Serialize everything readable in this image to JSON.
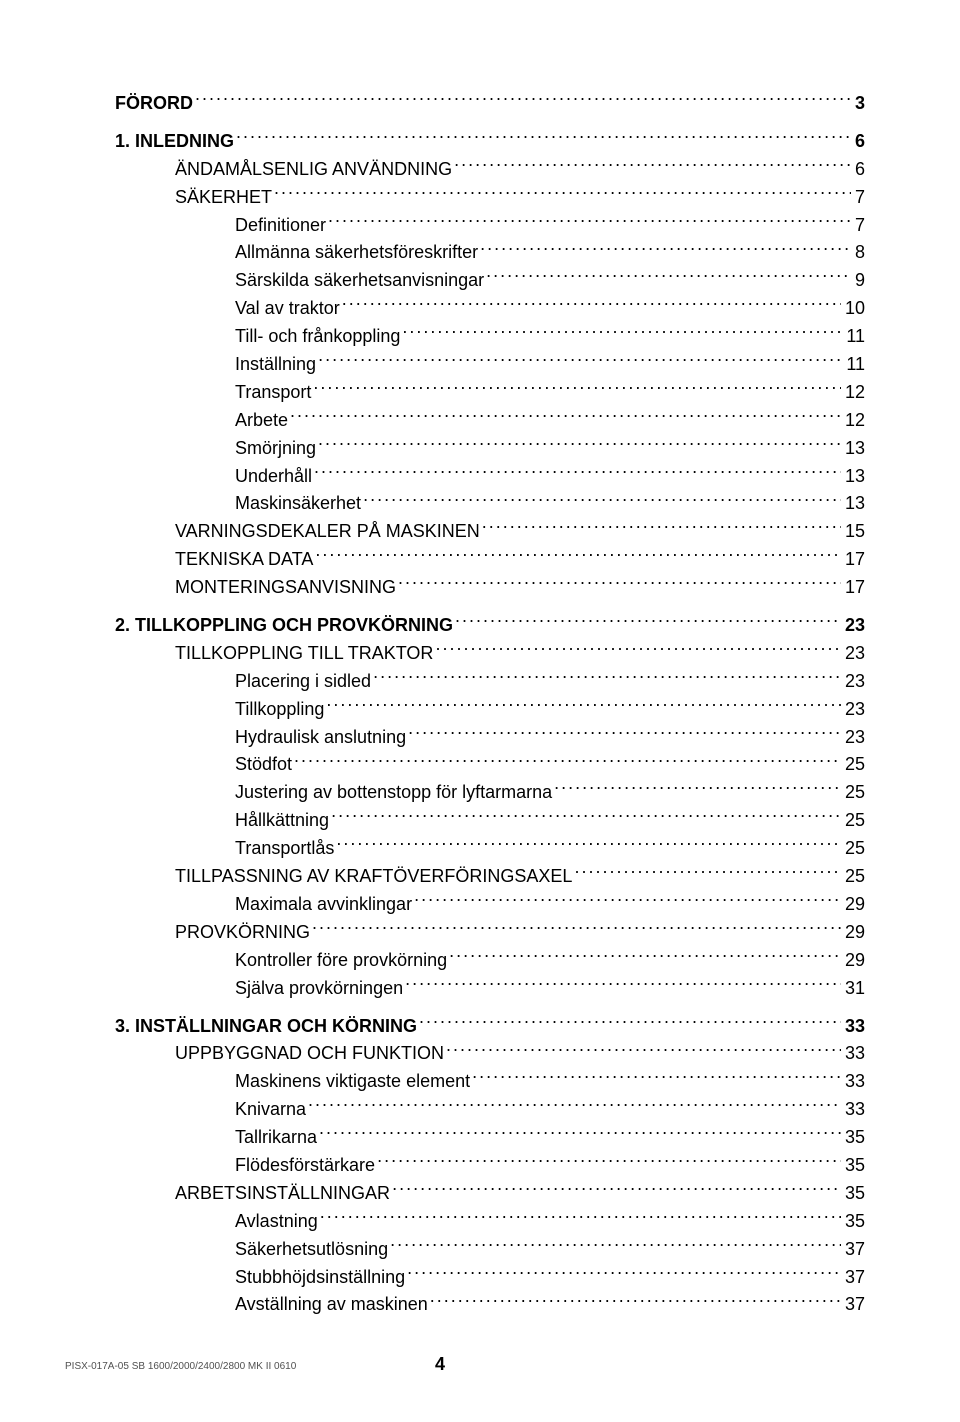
{
  "toc": [
    {
      "label": "FÖRORD",
      "page": "3",
      "level": 0,
      "first": true
    },
    {
      "label": "1. INLEDNING",
      "page": "6",
      "level": 0
    },
    {
      "label": "ÄNDAMÅLSENLIG ANVÄNDNING",
      "page": "6",
      "level": 1
    },
    {
      "label": "SÄKERHET",
      "page": "7",
      "level": 1
    },
    {
      "label": "Definitioner",
      "page": "7",
      "level": 2
    },
    {
      "label": "Allmänna säkerhetsföreskrifter",
      "page": "8",
      "level": 2
    },
    {
      "label": "Särskilda säkerhetsanvisningar",
      "page": "9",
      "level": 2
    },
    {
      "label": "Val av traktor",
      "page": "10",
      "level": 2
    },
    {
      "label": "Till- och frånkoppling",
      "page": "11",
      "level": 2
    },
    {
      "label": "Inställning",
      "page": "11",
      "level": 2
    },
    {
      "label": "Transport",
      "page": "12",
      "level": 2
    },
    {
      "label": "Arbete",
      "page": "12",
      "level": 2
    },
    {
      "label": "Smörjning",
      "page": "13",
      "level": 2
    },
    {
      "label": "Underhåll",
      "page": "13",
      "level": 2
    },
    {
      "label": "Maskinsäkerhet",
      "page": "13",
      "level": 2
    },
    {
      "label": "VARNINGSDEKALER PÅ MASKINEN",
      "page": "15",
      "level": 1
    },
    {
      "label": "TEKNISKA DATA",
      "page": "17",
      "level": 1
    },
    {
      "label": "MONTERINGSANVISNING",
      "page": "17",
      "level": 1
    },
    {
      "label": "2. TILLKOPPLING OCH PROVKÖRNING",
      "page": "23",
      "level": 0
    },
    {
      "label": "TILLKOPPLING TILL TRAKTOR",
      "page": "23",
      "level": 1
    },
    {
      "label": "Placering i sidled",
      "page": "23",
      "level": 2
    },
    {
      "label": "Tillkoppling",
      "page": "23",
      "level": 2
    },
    {
      "label": "Hydraulisk anslutning",
      "page": "23",
      "level": 2
    },
    {
      "label": "Stödfot",
      "page": "25",
      "level": 2
    },
    {
      "label": "Justering av bottenstopp för lyftarmarna",
      "page": "25",
      "level": 2
    },
    {
      "label": "Hållkättning",
      "page": "25",
      "level": 2
    },
    {
      "label": "Transportlås",
      "page": "25",
      "level": 2
    },
    {
      "label": "TILLPASSNING AV KRAFTÖVERFÖRINGSAXEL",
      "page": "25",
      "level": 1
    },
    {
      "label": "Maximala avvinklingar",
      "page": "29",
      "level": 2
    },
    {
      "label": "PROVKÖRNING",
      "page": "29",
      "level": 1
    },
    {
      "label": "Kontroller före provkörning",
      "page": "29",
      "level": 2
    },
    {
      "label": "Själva provkörningen",
      "page": "31",
      "level": 2
    },
    {
      "label": "3. INSTÄLLNINGAR OCH KÖRNING",
      "page": "33",
      "level": 0
    },
    {
      "label": "UPPBYGGNAD OCH FUNKTION",
      "page": "33",
      "level": 1
    },
    {
      "label": "Maskinens viktigaste element",
      "page": "33",
      "level": 2
    },
    {
      "label": "Knivarna",
      "page": "33",
      "level": 2
    },
    {
      "label": "Tallrikarna",
      "page": "35",
      "level": 2
    },
    {
      "label": "Flödesförstärkare",
      "page": "35",
      "level": 2
    },
    {
      "label": "ARBETSINSTÄLLNINGAR",
      "page": "35",
      "level": 1
    },
    {
      "label": "Avlastning",
      "page": "35",
      "level": 2
    },
    {
      "label": "Säkerhetsutlösning",
      "page": "37",
      "level": 2
    },
    {
      "label": "Stubbhöjdsinställning",
      "page": "37",
      "level": 2
    },
    {
      "label": "Avställning av maskinen",
      "page": "37",
      "level": 2
    }
  ],
  "footer": {
    "doc_code": "PISX-017A-05  SB 1600/2000/2400/2800 MK II  0610",
    "page_number": "4"
  }
}
